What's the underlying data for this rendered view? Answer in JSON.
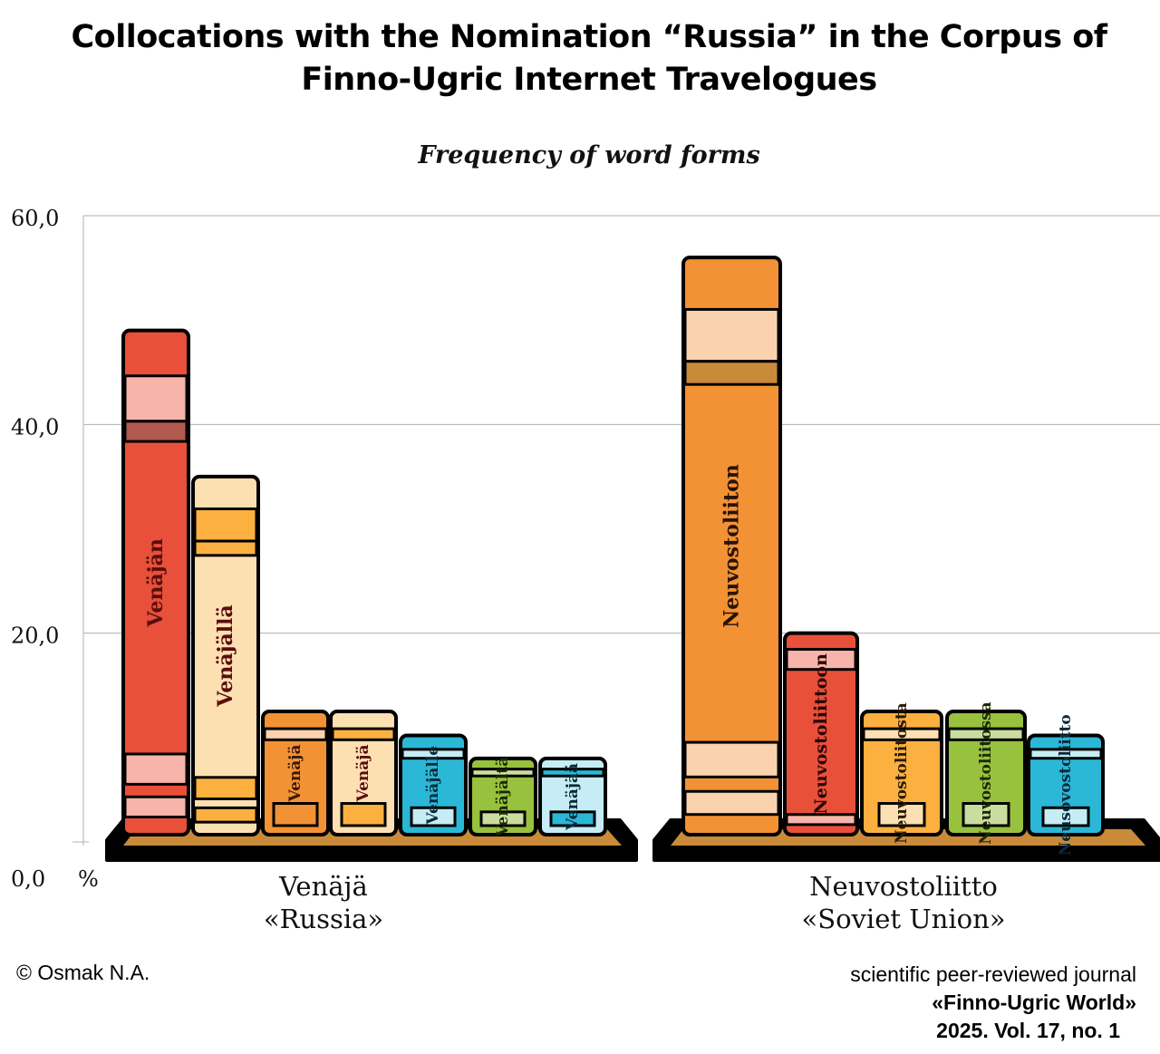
{
  "title_lines": [
    "Collocations with the Nomination “Russia” in the Corpus of",
    "Finno-Ugric Internet Travelogues"
  ],
  "credits": {
    "author": "© Osmak N.A.",
    "journal_line1": "scientific peer-reviewed journal",
    "journal_line2": "«Finno-Ugric World»",
    "journal_line3": "2025. Vol. 17, no. 1"
  },
  "chart_data": {
    "type": "bar",
    "title": "Frequency of word forms",
    "ylim": [
      0,
      60
    ],
    "yticks": [
      "60,0",
      "40,0",
      "20,0",
      "0,0"
    ],
    "yunit": "%",
    "grid": true,
    "groups": [
      {
        "label_lines": [
          "Venäjä",
          "«Russia»"
        ],
        "bars": [
          {
            "name": "Venäjän",
            "value": 49.0,
            "color": "#e8503a",
            "stripe": "#f6b4aa",
            "accent": "#b05a50",
            "label_color": "#5a0d0d"
          },
          {
            "name": "Venäjällä",
            "value": 35.0,
            "color": "#fde0b2",
            "stripe": "#fbb040",
            "accent": "#fbb040",
            "label_color": "#5a0d0d"
          },
          {
            "name": "Venäjä",
            "value": 12.5,
            "color": "#f39234",
            "stripe": "#fad3ae",
            "accent": "#f39234",
            "label_color": "#3a1a08"
          },
          {
            "name": "Venäjä",
            "value": 12.5,
            "color": "#fde0b2",
            "stripe": "#fbb040",
            "accent": "#fbb040",
            "label_color": "#5a0d0d"
          },
          {
            "name": "Venäjälle",
            "value": 10.2,
            "color": "#2bb7d6",
            "stripe": "#c6ecf5",
            "accent": "#c6ecf5",
            "label_color": "#0a2a3a"
          },
          {
            "name": "Venäjältä",
            "value": 8.0,
            "color": "#98c13d",
            "stripe": "#c9de9e",
            "accent": "#c9de9e",
            "label_color": "#1a2a08"
          },
          {
            "name": "Venäjää",
            "value": 8.0,
            "color": "#c6ecf5",
            "stripe": "#2bb7d6",
            "accent": "#2bb7d6",
            "label_color": "#0a2a3a"
          }
        ]
      },
      {
        "label_lines": [
          "Neuvostoliitto",
          "«Soviet Union»"
        ],
        "bars": [
          {
            "name": "Neuvostoliiton",
            "value": 56.0,
            "color": "#f39234",
            "stripe": "#fad3ae",
            "accent": "#c98a3a",
            "label_color": "#2a1206"
          },
          {
            "name": "Neuvostoliittoon",
            "value": 20.0,
            "color": "#e8503a",
            "stripe": "#f6b4aa",
            "accent": "#f6b4aa",
            "label_color": "#2a0606"
          },
          {
            "name": "Neuvostoliitosta",
            "value": 12.5,
            "color": "#fbb040",
            "stripe": "#fde0b2",
            "accent": "#fde0b2",
            "label_color": "#2a1a06"
          },
          {
            "name": "Neuvostoliitossa",
            "value": 12.5,
            "color": "#98c13d",
            "stripe": "#c9de9e",
            "accent": "#c9de9e",
            "label_color": "#1a2a08"
          },
          {
            "name": "Neusovostoliitto",
            "value": 10.2,
            "color": "#2bb7d6",
            "stripe": "#c6ecf5",
            "accent": "#c6ecf5",
            "label_color": "#0a2a3a"
          }
        ]
      }
    ]
  }
}
